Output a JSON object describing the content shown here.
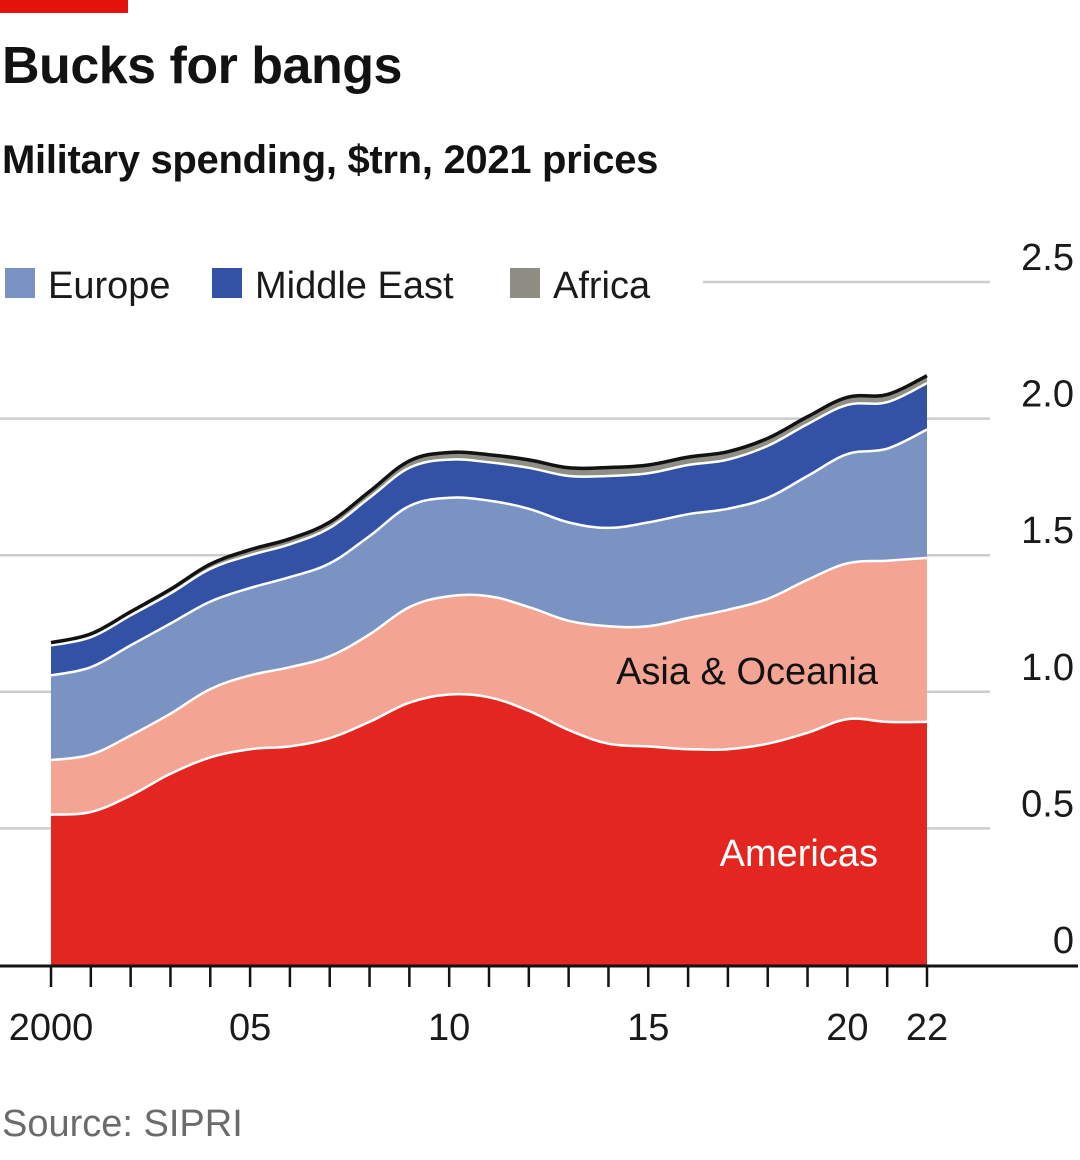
{
  "header": {
    "title": "Bucks for bangs",
    "subtitle": "Military spending, $trn, 2021 prices"
  },
  "footer": {
    "source": "Source: SIPRI"
  },
  "colors": {
    "accent": "#e3120b",
    "americas": "#e3261f",
    "asia_oceania": "#f4a492",
    "europe": "#7b93c2",
    "middle_east": "#3352a6",
    "africa": "#8e8e84",
    "top_line": "#121212",
    "grid": "#cccccc"
  },
  "chart_data": {
    "type": "area",
    "stacked": true,
    "title": "Bucks for bangs",
    "subtitle": "Military spending, $trn, 2021 prices",
    "x": [
      2000,
      2001,
      2002,
      2003,
      2004,
      2005,
      2006,
      2007,
      2008,
      2009,
      2010,
      2011,
      2012,
      2013,
      2014,
      2015,
      2016,
      2017,
      2018,
      2019,
      2020,
      2021,
      2022
    ],
    "x_tick_values": [
      2000,
      2005,
      2010,
      2015,
      2020,
      2022
    ],
    "x_tick_labels": [
      "2000",
      "05",
      "10",
      "15",
      "20",
      "22"
    ],
    "y_ticks": [
      0,
      0.5,
      1.0,
      1.5,
      2.0,
      2.5
    ],
    "y_tick_labels": [
      "0",
      "0.5",
      "1.0",
      "1.5",
      "2.0",
      "2.5"
    ],
    "ylim": [
      0,
      2.5
    ],
    "y_axis_side": "right",
    "grid": true,
    "legend_position": "top-left",
    "series": [
      {
        "name": "Americas",
        "key": "americas",
        "values": [
          0.55,
          0.56,
          0.62,
          0.7,
          0.76,
          0.79,
          0.8,
          0.83,
          0.89,
          0.96,
          0.99,
          0.98,
          0.93,
          0.86,
          0.81,
          0.8,
          0.79,
          0.79,
          0.81,
          0.85,
          0.9,
          0.89,
          0.89
        ]
      },
      {
        "name": "Asia & Oceania",
        "key": "asia_oceania",
        "values": [
          0.2,
          0.21,
          0.22,
          0.22,
          0.25,
          0.27,
          0.29,
          0.3,
          0.32,
          0.35,
          0.36,
          0.37,
          0.38,
          0.4,
          0.43,
          0.44,
          0.48,
          0.51,
          0.53,
          0.56,
          0.57,
          0.59,
          0.6
        ]
      },
      {
        "name": "Europe",
        "key": "europe",
        "values": [
          0.31,
          0.32,
          0.33,
          0.33,
          0.32,
          0.32,
          0.33,
          0.34,
          0.36,
          0.37,
          0.36,
          0.35,
          0.36,
          0.36,
          0.36,
          0.38,
          0.38,
          0.37,
          0.37,
          0.38,
          0.4,
          0.41,
          0.47
        ]
      },
      {
        "name": "Middle East",
        "key": "middle_east",
        "values": [
          0.11,
          0.11,
          0.11,
          0.11,
          0.12,
          0.12,
          0.12,
          0.13,
          0.14,
          0.14,
          0.14,
          0.14,
          0.15,
          0.17,
          0.19,
          0.18,
          0.18,
          0.18,
          0.19,
          0.19,
          0.18,
          0.17,
          0.17
        ]
      },
      {
        "name": "Africa",
        "key": "africa",
        "values": [
          0.01,
          0.012,
          0.013,
          0.015,
          0.017,
          0.02,
          0.02,
          0.021,
          0.023,
          0.025,
          0.026,
          0.028,
          0.029,
          0.03,
          0.031,
          0.03,
          0.029,
          0.029,
          0.028,
          0.027,
          0.028,
          0.028,
          0.027
        ]
      }
    ],
    "legend_entries": [
      "Europe",
      "Middle East",
      "Africa"
    ],
    "in_chart_labels": [
      "Asia & Oceania",
      "Americas"
    ]
  }
}
